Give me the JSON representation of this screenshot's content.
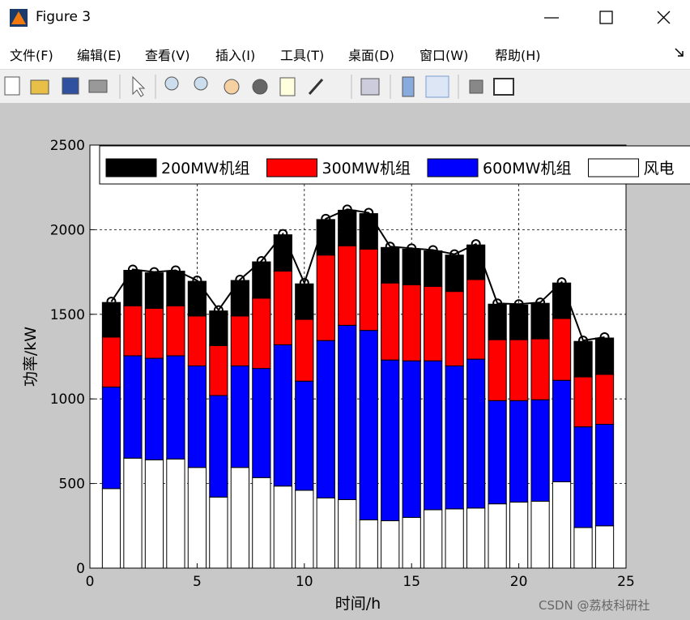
{
  "window": {
    "title": "Figure 3"
  },
  "menu": [
    "文件(F)",
    "编辑(E)",
    "查看(V)",
    "插入(I)",
    "工具(T)",
    "桌面(D)",
    "窗口(W)",
    "帮助(H)"
  ],
  "watermark": "CSDN @荔枝科研社",
  "chart_data": {
    "type": "stacked-bar",
    "x_label": "时间/h",
    "y_label": "功率/kW",
    "x": [
      1,
      2,
      3,
      4,
      5,
      6,
      7,
      8,
      9,
      10,
      11,
      12,
      13,
      14,
      15,
      16,
      17,
      18,
      19,
      20,
      21,
      22,
      23,
      24
    ],
    "series": [
      {
        "name": "200MW机组",
        "color": "#000000",
        "values": [
          205,
          210,
          210,
          205,
          205,
          205,
          210,
          215,
          215,
          210,
          210,
          210,
          210,
          210,
          210,
          210,
          215,
          205,
          210,
          205,
          210,
          210,
          210,
          215
        ]
      },
      {
        "name": "300MW机组",
        "color": "#ff0000",
        "values": [
          295,
          295,
          295,
          295,
          295,
          295,
          295,
          415,
          435,
          365,
          505,
          470,
          480,
          455,
          450,
          440,
          440,
          470,
          360,
          360,
          360,
          365,
          295,
          295
        ]
      },
      {
        "name": "600MW机组",
        "color": "#0000ff",
        "values": [
          600,
          605,
          600,
          610,
          600,
          600,
          600,
          645,
          835,
          645,
          930,
          1030,
          1120,
          950,
          925,
          880,
          845,
          880,
          610,
          600,
          600,
          600,
          595,
          600
        ]
      },
      {
        "name": "风电",
        "color": "#ffffff",
        "values": [
          470,
          650,
          640,
          645,
          595,
          420,
          595,
          535,
          485,
          460,
          415,
          405,
          285,
          280,
          300,
          345,
          350,
          355,
          380,
          390,
          395,
          510,
          240,
          250
        ]
      }
    ],
    "line": {
      "color": "#000000",
      "values": [
        1575,
        1765,
        1750,
        1760,
        1700,
        1525,
        1705,
        1815,
        1975,
        1685,
        2065,
        2120,
        2100,
        1900,
        1890,
        1880,
        1855,
        1915,
        1565,
        1560,
        1570,
        1690,
        1345,
        1365
      ]
    },
    "xlim": [
      0,
      25
    ],
    "xticks": [
      0,
      5,
      10,
      15,
      20,
      25
    ],
    "ylim": [
      0,
      2500
    ],
    "yticks": [
      0,
      500,
      1000,
      1500,
      2000,
      2500
    ],
    "grid": true
  }
}
